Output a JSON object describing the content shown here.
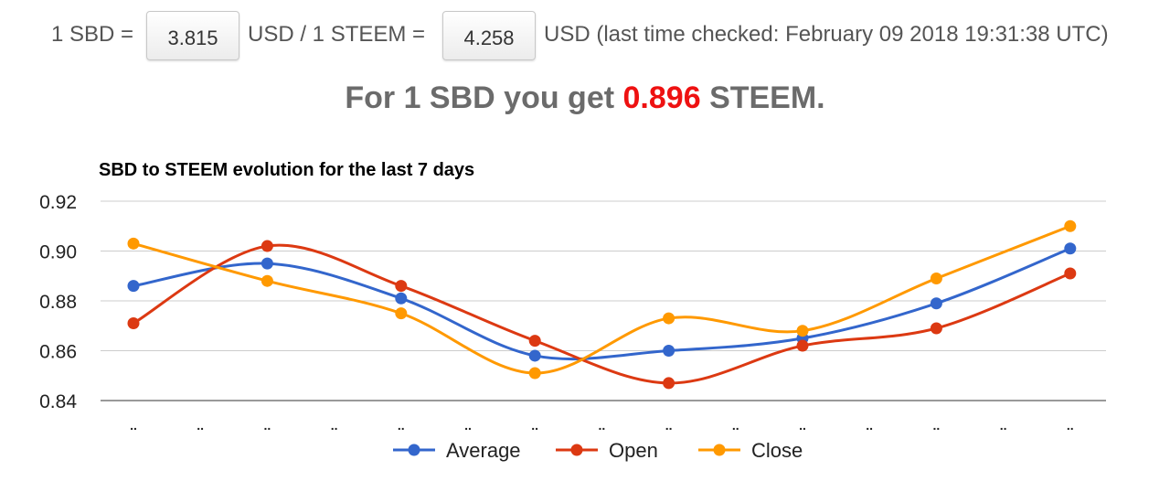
{
  "rates": {
    "sbd_label": "1 SBD =",
    "sbd_usd": "3.815",
    "mid_label": "USD / 1 STEEM =",
    "steem_usd": "4.258",
    "tail_label": "USD (last time checked: February 09 2018 19:31:38 UTC)"
  },
  "headline": {
    "prefix": "For 1 SBD you get",
    "value": "0.896",
    "suffix": "STEEM."
  },
  "chart_data": {
    "type": "line",
    "title": "SBD to STEEM evolution for the last 7 days",
    "xlabel": "",
    "ylabel": "",
    "ylim": [
      0.84,
      0.92
    ],
    "yticks": [
      0.92,
      0.9,
      0.88,
      0.86,
      0.84
    ],
    "x_tick_labels": [
      "..",
      "..",
      "..",
      "..",
      "..",
      "..",
      "..",
      "..",
      "..",
      "..",
      "..",
      "..",
      "..",
      "..",
      ".."
    ],
    "grid": true,
    "legend_position": "bottom",
    "series": [
      {
        "name": "Average",
        "color": "#3366cc",
        "values": [
          0.886,
          0.895,
          0.881,
          0.858,
          0.86,
          0.865,
          0.879,
          0.901
        ]
      },
      {
        "name": "Open",
        "color": "#dc3912",
        "values": [
          0.871,
          0.902,
          0.886,
          0.864,
          0.847,
          0.862,
          0.869,
          0.891
        ]
      },
      {
        "name": "Close",
        "color": "#ff9900",
        "values": [
          0.903,
          0.888,
          0.875,
          0.851,
          0.873,
          0.868,
          0.889,
          0.91
        ]
      }
    ]
  }
}
